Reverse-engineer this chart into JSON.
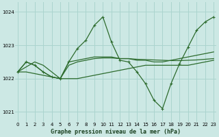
{
  "background_color": "#cce8e4",
  "grid_color": "#aad4ce",
  "line_color": "#2d6b2d",
  "title": "Graphe pression niveau de la mer (hPa)",
  "xlim": [
    -0.3,
    23.3
  ],
  "ylim": [
    1020.7,
    1024.3
  ],
  "ytick_vals": [
    1021,
    1022,
    1023,
    1024
  ],
  "xtick_vals": [
    0,
    1,
    2,
    3,
    4,
    5,
    6,
    7,
    8,
    9,
    10,
    11,
    12,
    13,
    14,
    15,
    16,
    17,
    18,
    19,
    20,
    21,
    22,
    23
  ],
  "series1_x": [
    0,
    1,
    2,
    3,
    4,
    5,
    6,
    7,
    8,
    9,
    10,
    11,
    12,
    13,
    14,
    15,
    16,
    17,
    18,
    19,
    20,
    21,
    22,
    23
  ],
  "series1_y": [
    1022.2,
    1022.5,
    1022.4,
    1022.2,
    1022.05,
    1022.0,
    1022.5,
    1022.9,
    1023.15,
    1023.6,
    1023.85,
    1023.1,
    1022.55,
    1022.5,
    1022.2,
    1021.85,
    1021.35,
    1021.1,
    1021.85,
    1022.45,
    1022.95,
    1023.45,
    1023.7,
    1023.85
  ],
  "series2_x": [
    0,
    1,
    2,
    3,
    4,
    5,
    6,
    7,
    8,
    9,
    10,
    11,
    12,
    13,
    14,
    15,
    16,
    17,
    18,
    19,
    20,
    21,
    22,
    23
  ],
  "series2_y": [
    1022.2,
    1022.2,
    1022.15,
    1022.1,
    1022.05,
    1022.0,
    1022.0,
    1022.0,
    1022.05,
    1022.1,
    1022.15,
    1022.2,
    1022.25,
    1022.3,
    1022.35,
    1022.4,
    1022.4,
    1022.4,
    1022.4,
    1022.4,
    1022.4,
    1022.45,
    1022.5,
    1022.55
  ],
  "series3_x": [
    0,
    1,
    2,
    3,
    4,
    5,
    6,
    7,
    8,
    9,
    10,
    11,
    12,
    13,
    14,
    15,
    16,
    17,
    18,
    19,
    20,
    21,
    22,
    23
  ],
  "series3_y": [
    1022.2,
    1022.35,
    1022.5,
    1022.4,
    1022.2,
    1022.0,
    1022.5,
    1022.55,
    1022.6,
    1022.65,
    1022.65,
    1022.65,
    1022.6,
    1022.6,
    1022.55,
    1022.55,
    1022.5,
    1022.5,
    1022.55,
    1022.6,
    1022.65,
    1022.7,
    1022.75,
    1022.8
  ],
  "series4_x": [
    0,
    1,
    2,
    3,
    4,
    5,
    6,
    7,
    8,
    9,
    10,
    11,
    12,
    13,
    14,
    15,
    16,
    17,
    18,
    19,
    20,
    21,
    22,
    23
  ],
  "series4_y": [
    1022.2,
    1022.5,
    1022.4,
    1022.2,
    1022.05,
    1022.0,
    1022.4,
    1022.5,
    1022.55,
    1022.6,
    1022.62,
    1022.62,
    1022.6,
    1022.6,
    1022.58,
    1022.57,
    1022.56,
    1022.55,
    1022.54,
    1022.54,
    1022.55,
    1022.56,
    1022.58,
    1022.6
  ]
}
